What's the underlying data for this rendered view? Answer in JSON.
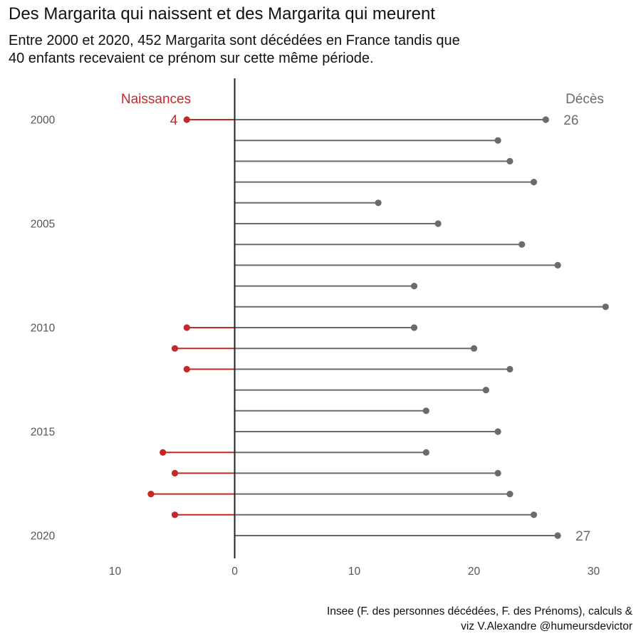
{
  "title": "Des Margarita qui naissent et des Margarita qui meurent",
  "subtitle_line1": "Entre 2000 et 2020, 452 Margarita sont décédées en France tandis que",
  "subtitle_line2": "40 enfants recevaient ce prénom sur cette même période.",
  "caption_line1": "Insee (F. des personnes décédées, F. des Prénoms), calculs &",
  "caption_line2": "viz V.Alexandre @humeursdevictor",
  "colors": {
    "naissances": "#c62828",
    "deces": "#6b6b6b",
    "axis": "#222222",
    "tick_text": "#555555"
  },
  "chart_data": {
    "type": "lollipop",
    "title": "Des Margarita qui naissent et des Margarita qui meurent",
    "years": [
      2000,
      2001,
      2002,
      2003,
      2004,
      2005,
      2006,
      2007,
      2008,
      2009,
      2010,
      2011,
      2012,
      2013,
      2014,
      2015,
      2016,
      2017,
      2018,
      2019,
      2020
    ],
    "y_tick_labels": [
      "2000",
      "2005",
      "2010",
      "2015",
      "2020"
    ],
    "x_tick_labels": [
      "10",
      "0",
      "10",
      "20",
      "30"
    ],
    "x_tick_values": [
      -10,
      0,
      10,
      20,
      30
    ],
    "xlim": [
      -10,
      30
    ],
    "series": [
      {
        "name": "Naissances",
        "direction": "left",
        "values": [
          4,
          0,
          0,
          0,
          0,
          0,
          0,
          0,
          0,
          0,
          4,
          5,
          4,
          0,
          0,
          0,
          6,
          5,
          7,
          5,
          0
        ]
      },
      {
        "name": "Décès",
        "direction": "right",
        "values": [
          26,
          22,
          23,
          25,
          12,
          17,
          24,
          27,
          15,
          31,
          15,
          20,
          23,
          21,
          16,
          22,
          16,
          22,
          23,
          25,
          27
        ]
      }
    ],
    "annotations": [
      {
        "series": "Naissances",
        "year": 2000,
        "text": "4"
      },
      {
        "series": "Décès",
        "year": 2000,
        "text": "26"
      },
      {
        "series": "Décès",
        "year": 2020,
        "text": "27"
      }
    ],
    "grid": false
  }
}
